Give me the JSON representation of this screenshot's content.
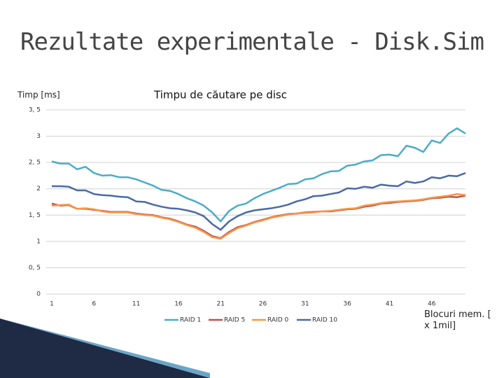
{
  "slide": {
    "title": "Rezultate experimentale - Disk.Sim"
  },
  "chart_data": {
    "type": "line",
    "title": "Timpu de căutare pe disc",
    "y_label": "Timp [ms]",
    "x_label": "Blocuri mem. [ x 1mil]",
    "x": [
      1,
      2,
      3,
      4,
      5,
      6,
      7,
      8,
      9,
      10,
      11,
      12,
      13,
      14,
      15,
      16,
      17,
      18,
      19,
      20,
      21,
      22,
      23,
      24,
      25,
      26,
      27,
      28,
      29,
      30,
      31,
      32,
      33,
      34,
      35,
      36,
      37,
      38,
      39,
      40,
      41,
      42,
      43,
      44,
      45,
      46,
      47,
      48,
      49,
      50
    ],
    "xlim": [
      1,
      50
    ],
    "xticks": [
      1,
      6,
      11,
      16,
      21,
      26,
      31,
      36,
      41,
      46
    ],
    "ylim": [
      0,
      3.5
    ],
    "yticks": [
      0,
      {
        "value": 0.5,
        "label": "0, 5"
      },
      1,
      {
        "value": 1.5,
        "label": "1, 5"
      },
      2,
      {
        "value": 2.5,
        "label": "2, 5"
      },
      3,
      {
        "value": 3.5,
        "label": "3, 5"
      }
    ],
    "grid": true,
    "legend": "bottom",
    "series": [
      {
        "name": "RAID 1",
        "color": "#4bacc6",
        "values": [
          2.52,
          2.48,
          2.48,
          2.37,
          2.42,
          2.3,
          2.25,
          2.26,
          2.22,
          2.22,
          2.18,
          2.12,
          2.06,
          1.98,
          1.96,
          1.9,
          1.82,
          1.76,
          1.68,
          1.55,
          1.38,
          1.58,
          1.68,
          1.72,
          1.82,
          1.9,
          1.96,
          2.02,
          2.09,
          2.1,
          2.18,
          2.2,
          2.28,
          2.33,
          2.34,
          2.44,
          2.46,
          2.52,
          2.54,
          2.64,
          2.65,
          2.62,
          2.82,
          2.78,
          2.7,
          2.92,
          2.87,
          3.05,
          3.15,
          3.05
        ]
      },
      {
        "name": "RAID 5",
        "color": "#c0504d",
        "values": [
          1.72,
          1.68,
          1.69,
          1.62,
          1.62,
          1.6,
          1.58,
          1.56,
          1.56,
          1.56,
          1.53,
          1.51,
          1.5,
          1.46,
          1.43,
          1.38,
          1.32,
          1.28,
          1.2,
          1.1,
          1.06,
          1.18,
          1.27,
          1.31,
          1.37,
          1.41,
          1.46,
          1.49,
          1.52,
          1.53,
          1.55,
          1.56,
          1.57,
          1.57,
          1.59,
          1.61,
          1.62,
          1.66,
          1.68,
          1.72,
          1.73,
          1.75,
          1.76,
          1.77,
          1.79,
          1.82,
          1.83,
          1.85,
          1.84,
          1.87
        ]
      },
      {
        "name": "RAID 0",
        "color": "#f79646",
        "values": [
          1.68,
          1.69,
          1.7,
          1.62,
          1.63,
          1.61,
          1.57,
          1.55,
          1.55,
          1.55,
          1.52,
          1.5,
          1.49,
          1.45,
          1.42,
          1.37,
          1.31,
          1.26,
          1.18,
          1.08,
          1.05,
          1.16,
          1.25,
          1.3,
          1.36,
          1.4,
          1.45,
          1.48,
          1.51,
          1.53,
          1.54,
          1.55,
          1.57,
          1.58,
          1.6,
          1.62,
          1.63,
          1.68,
          1.7,
          1.73,
          1.75,
          1.76,
          1.77,
          1.78,
          1.8,
          1.83,
          1.85,
          1.87,
          1.9,
          1.88
        ]
      },
      {
        "name": "RAID 10",
        "color": "#4a6aa5",
        "values": [
          2.05,
          2.05,
          2.04,
          1.97,
          1.97,
          1.9,
          1.88,
          1.87,
          1.85,
          1.84,
          1.76,
          1.75,
          1.7,
          1.66,
          1.63,
          1.62,
          1.59,
          1.55,
          1.48,
          1.33,
          1.22,
          1.38,
          1.48,
          1.55,
          1.59,
          1.61,
          1.63,
          1.66,
          1.7,
          1.76,
          1.8,
          1.86,
          1.87,
          1.9,
          1.93,
          2.01,
          2.0,
          2.04,
          2.02,
          2.08,
          2.06,
          2.05,
          2.14,
          2.11,
          2.14,
          2.22,
          2.2,
          2.25,
          2.24,
          2.3
        ]
      }
    ]
  }
}
